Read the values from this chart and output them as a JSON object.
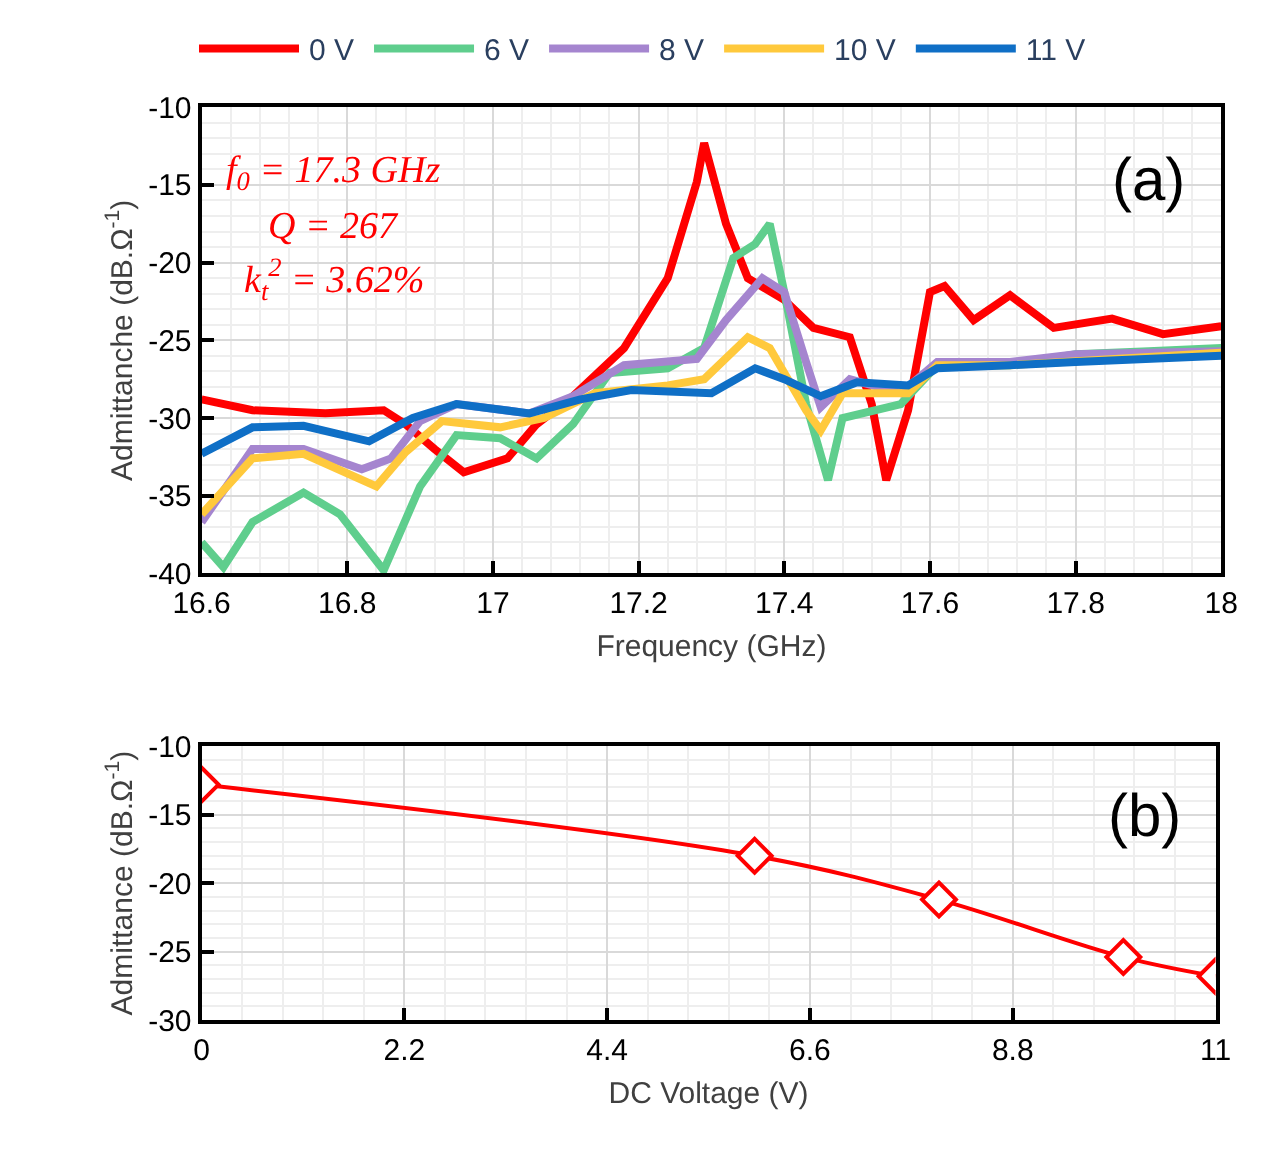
{
  "chart_data": [
    {
      "type": "line",
      "xlabel": "Frequency (GHz)",
      "ylabel": "Admittanche (dB.Ω$^{-1}$)",
      "xlim": [
        16.6,
        18
      ],
      "xticks": [
        16.6,
        16.8,
        17,
        17.2,
        17.4,
        17.6,
        17.8,
        18
      ],
      "ylim": [
        -40,
        -10
      ],
      "yticks": [
        -40,
        -35,
        -30,
        -25,
        -20,
        -15,
        -10
      ],
      "grid": true,
      "legend": "top",
      "marker": "none",
      "line_style": "solid",
      "annotations": [
        "(a)",
        "f$_{0}$ = 17.3 GHz",
        "Q = 267",
        "k$_{t}$$^{2}$ = 3.62%"
      ],
      "series": [
        {
          "name": "0 V",
          "color": "#ff0000",
          "x": [
            16.6,
            16.67,
            16.77,
            16.85,
            16.88,
            16.92,
            16.96,
            17.02,
            17.06,
            17.11,
            17.18,
            17.24,
            17.28,
            17.29,
            17.32,
            17.35,
            17.4,
            17.44,
            17.49,
            17.52,
            17.54,
            17.57,
            17.6,
            17.62,
            17.66,
            17.71,
            17.77,
            17.85,
            17.92,
            18
          ],
          "values": [
            -28.8,
            -29.5,
            -29.7,
            -29.5,
            -30.4,
            -32.0,
            -33.5,
            -32.6,
            -30.4,
            -28.6,
            -25.5,
            -21.0,
            -14.8,
            -12.3,
            -17.5,
            -21.0,
            -22.4,
            -24.2,
            -24.8,
            -29.1,
            -34.0,
            -29.5,
            -21.9,
            -21.5,
            -23.7,
            -22.1,
            -24.2,
            -23.6,
            -24.6,
            -24.1
          ]
        },
        {
          "name": "6 V",
          "color": "#5fce8d",
          "x": [
            16.6,
            16.63,
            16.67,
            16.74,
            16.79,
            16.85,
            16.9,
            16.95,
            17.01,
            17.06,
            17.11,
            17.16,
            17.24,
            17.29,
            17.33,
            17.36,
            17.38,
            17.4,
            17.43,
            17.46,
            17.48,
            17.56,
            17.61,
            17.71,
            17.8,
            17.9,
            18
          ],
          "values": [
            -38.0,
            -39.6,
            -36.7,
            -34.8,
            -36.2,
            -39.8,
            -34.4,
            -31.1,
            -31.3,
            -32.6,
            -30.4,
            -27.1,
            -26.8,
            -25.5,
            -19.7,
            -18.8,
            -17.5,
            -21.9,
            -29.1,
            -34.0,
            -30.0,
            -29.1,
            -26.6,
            -26.6,
            -25.9,
            -25.7,
            -25.5
          ]
        },
        {
          "name": "8 V",
          "color": "#a585cf",
          "x": [
            16.6,
            16.67,
            16.74,
            16.82,
            16.86,
            16.9,
            16.95,
            17.05,
            17.11,
            17.18,
            17.28,
            17.32,
            17.37,
            17.4,
            17.43,
            17.45,
            17.49,
            17.56,
            17.61,
            17.71,
            17.8,
            18
          ],
          "values": [
            -36.7,
            -32.0,
            -32.0,
            -33.3,
            -32.6,
            -30.2,
            -29.1,
            -29.7,
            -28.6,
            -26.6,
            -26.2,
            -23.7,
            -21.0,
            -21.9,
            -26.4,
            -29.3,
            -27.5,
            -28.4,
            -26.4,
            -26.4,
            -25.9,
            -25.7
          ]
        },
        {
          "name": "10 V",
          "color": "#ffc93c",
          "x": [
            16.6,
            16.67,
            16.74,
            16.84,
            16.88,
            16.93,
            17.01,
            17.07,
            17.14,
            17.24,
            17.29,
            17.35,
            17.38,
            17.43,
            17.45,
            17.48,
            17.57,
            17.61,
            17.71,
            18
          ],
          "values": [
            -36.2,
            -32.6,
            -32.3,
            -34.4,
            -32.2,
            -30.2,
            -30.6,
            -30.0,
            -28.4,
            -27.9,
            -27.5,
            -24.8,
            -25.5,
            -29.5,
            -30.8,
            -28.4,
            -28.4,
            -26.6,
            -26.6,
            -25.8
          ]
        },
        {
          "name": "11 V",
          "color": "#0f6fc6",
          "x": [
            16.6,
            16.67,
            16.74,
            16.83,
            16.89,
            16.95,
            17.05,
            17.12,
            17.19,
            17.3,
            17.36,
            17.4,
            17.45,
            17.5,
            17.57,
            17.61,
            17.71,
            17.8,
            18
          ],
          "values": [
            -32.3,
            -30.6,
            -30.5,
            -31.5,
            -30.0,
            -29.1,
            -29.7,
            -28.8,
            -28.2,
            -28.4,
            -26.8,
            -27.5,
            -28.6,
            -27.7,
            -27.9,
            -26.8,
            -26.6,
            -26.4,
            -26.0
          ]
        }
      ]
    },
    {
      "type": "line",
      "xlabel": "DC Voltage (V)",
      "ylabel": "Admittance (dB.Ω$^{-1}$)",
      "xlim": [
        0,
        11
      ],
      "xticks": [
        0,
        2.2,
        4.4,
        6.6,
        8.8,
        11
      ],
      "ylim": [
        -30,
        -10
      ],
      "yticks": [
        -30,
        -25,
        -20,
        -15,
        -10
      ],
      "grid": true,
      "marker": "diamond",
      "line_style": "solid",
      "annotations": [
        "(b)"
      ],
      "series": [
        {
          "color": "#ff0000",
          "x": [
            0,
            6,
            8,
            10,
            11
          ],
          "values": [
            -12.8,
            -18.0,
            -21.2,
            -25.4,
            -26.8
          ]
        }
      ]
    }
  ]
}
